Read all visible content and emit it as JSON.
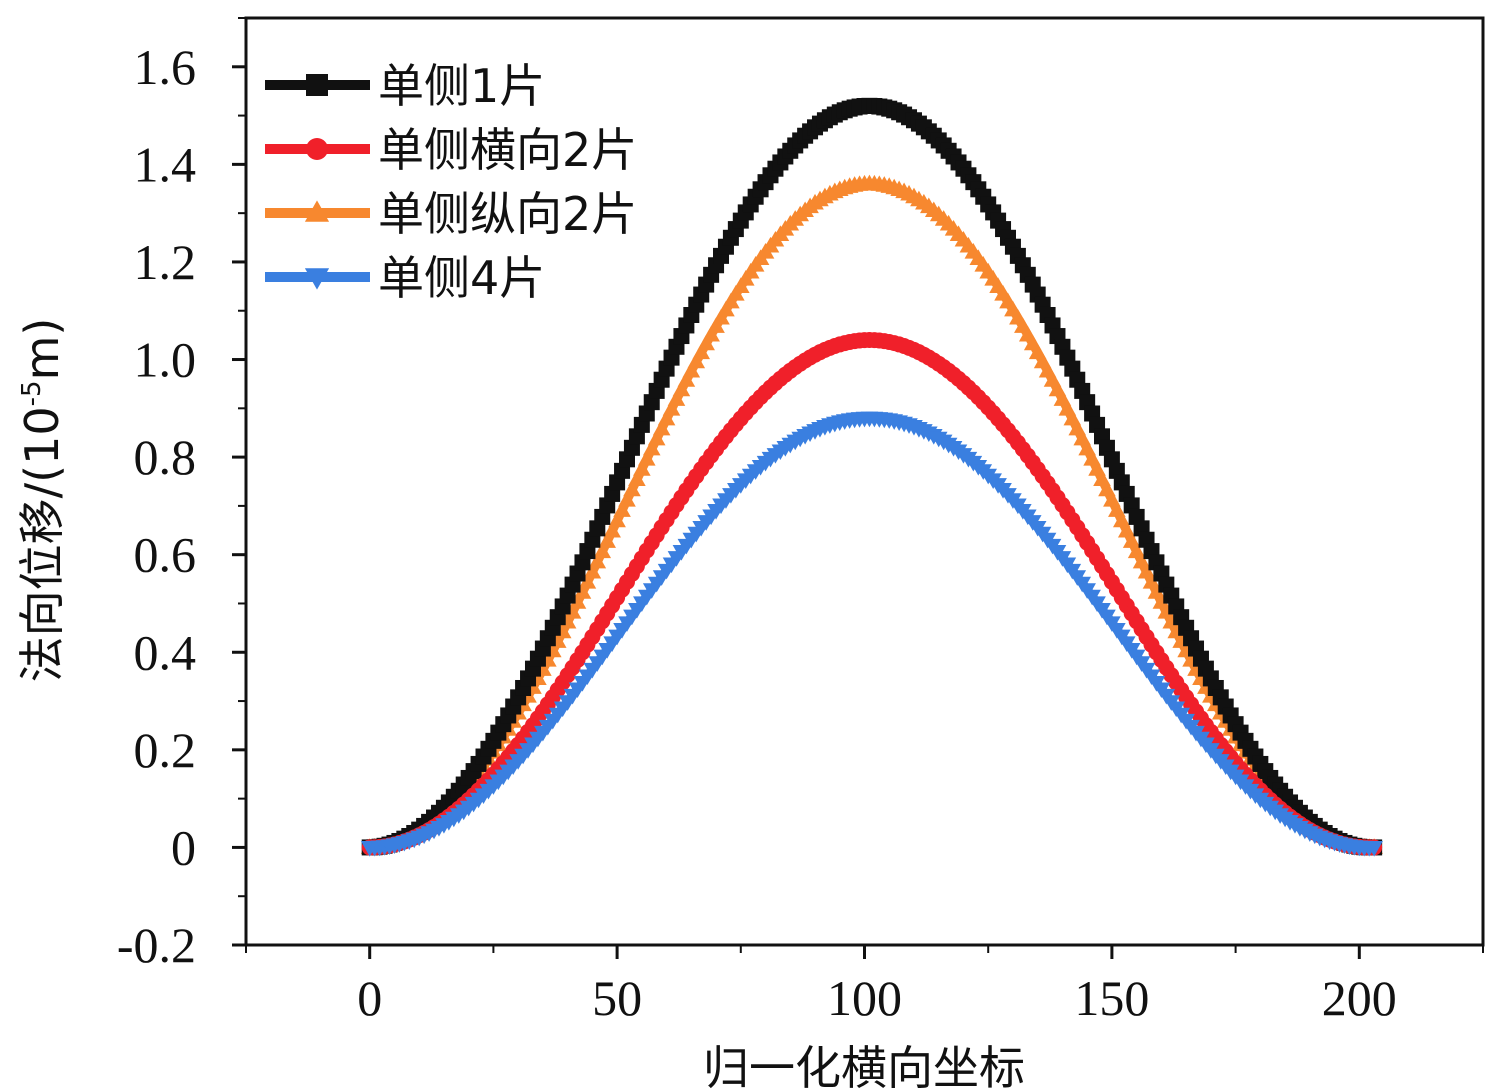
{
  "chart_data": {
    "type": "line",
    "xlabel": "归一化横向坐标",
    "ylabel_main": "法向位移/(10",
    "ylabel_sup": "-5",
    "ylabel_tail": "m)",
    "xlim": [
      -25,
      225
    ],
    "ylim": [
      -0.2,
      1.7
    ],
    "xticks": [
      0,
      50,
      100,
      150,
      200
    ],
    "xtick_labels": [
      "0",
      "50",
      "100",
      "150",
      "200"
    ],
    "yticks": [
      -0.2,
      0,
      0.2,
      0.4,
      0.6,
      0.8,
      1.0,
      1.2,
      1.4,
      1.6
    ],
    "ytick_labels": [
      "-0.2",
      "0",
      "0.2",
      "0.4",
      "0.6",
      "0.8",
      "1.0",
      "1.2",
      "1.4",
      "1.6"
    ],
    "x_range": [
      0,
      203
    ],
    "peak_x": 101,
    "series": [
      {
        "name": "单侧1片",
        "color": "#111111",
        "marker": "square",
        "peak": 1.52,
        "start": 0.0,
        "end": 0.0
      },
      {
        "name": "单侧横向2片",
        "color": "#f0202a",
        "marker": "circle",
        "peak": 1.04,
        "start": 0.0,
        "end": 0.0
      },
      {
        "name": "单侧纵向2片",
        "color": "#f7882f",
        "marker": "triangle-up",
        "peak": 1.36,
        "start": 0.0,
        "end": 0.0
      },
      {
        "name": "单侧4片",
        "color": "#3a7fe0",
        "marker": "triangle-down",
        "peak": 0.88,
        "start": 0.0,
        "end": 0.0
      }
    ],
    "draw_order": [
      2,
      0,
      1,
      3
    ]
  }
}
